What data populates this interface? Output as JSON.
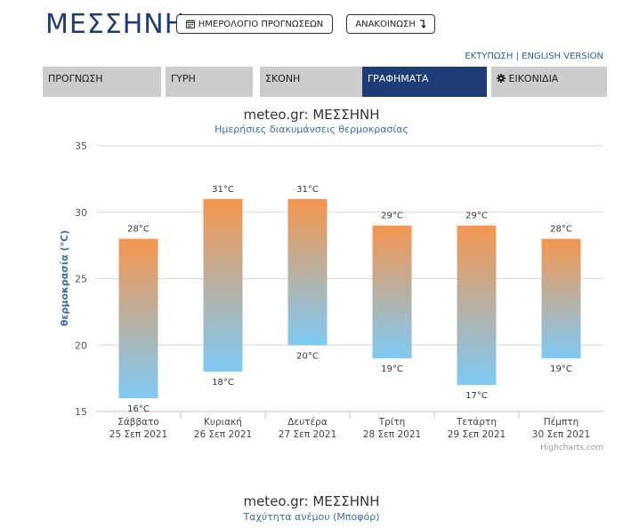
{
  "header": {
    "city": "ΜΕΣΣΗΝΗ",
    "calendar_button": "ΗΜΕΡΟΛΟΓΙΟ ΠΡΟΓΝΩΣΕΩΝ",
    "announcement_button": "ΑΝΑΚΟΙΝΩΣΗ",
    "print_link": "ΕΚΤΥΠΩΣΗ",
    "separator": "|",
    "english_link": "ENGLISH VERSION"
  },
  "tabs": [
    {
      "label": "ΠΡΟΓΝΩΣΗ",
      "active": false
    },
    {
      "label": "ΓΥΡΗ",
      "active": false
    },
    {
      "label": "ΣΚΟΝΗ",
      "active": false
    },
    {
      "label": "ΓΡΑΦΗΜΑΤΑ",
      "active": true
    },
    {
      "label": "ΕΙΚΟΝΙΔΙΑ",
      "active": false
    }
  ],
  "chart": {
    "title": "meteo.gr: ΜΕΣΣΗΝΗ",
    "subtitle": "Ημερήσιες διακυμάνσεις θερμοκρασίας",
    "credits": "Highcharts.com"
  },
  "chart_data": {
    "type": "bar",
    "title": "meteo.gr: ΜΕΣΣΗΝΗ",
    "subtitle": "Ημερήσιες διακυμάνσεις θερμοκρασίας",
    "ylabel": "θερμοκρασία (°C)",
    "ylim": [
      15,
      35
    ],
    "yticks": [
      "15",
      "20",
      "25",
      "30",
      "35"
    ],
    "grid": true,
    "categories": [
      {
        "day": "Σάββατο",
        "date": "25 Σεπ 2021"
      },
      {
        "day": "Κυριακή",
        "date": "26 Σεπ 2021"
      },
      {
        "day": "Δευτέρα",
        "date": "27 Σεπ 2021"
      },
      {
        "day": "Τρίτη",
        "date": "28 Σεπ 2021"
      },
      {
        "day": "Τετάρτη",
        "date": "29 Σεπ 2021"
      },
      {
        "day": "Πέμπτη",
        "date": "30 Σεπ 2021"
      }
    ],
    "low": [
      16,
      18,
      20,
      19,
      17,
      19
    ],
    "high": [
      28,
      31,
      31,
      29,
      29,
      28
    ],
    "low_labels": [
      "16°C",
      "18°C",
      "20°C",
      "19°C",
      "17°C",
      "19°C"
    ],
    "high_labels": [
      "28°C",
      "31°C",
      "31°C",
      "29°C",
      "29°C",
      "28°C"
    ],
    "gradient_top": "#f5964e",
    "gradient_bottom": "#7ecaf5"
  },
  "second_chart": {
    "title": "meteo.gr: ΜΕΣΣΗΝΗ",
    "subtitle": "Ταχύτητα ανέμου (Μποφόρ)"
  }
}
